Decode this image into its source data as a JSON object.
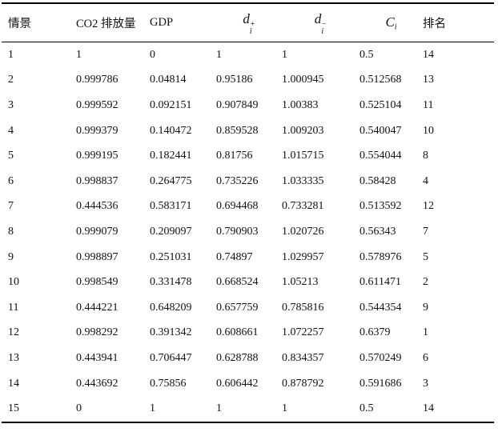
{
  "table": {
    "headers": [
      {
        "text": "情景"
      },
      {
        "text": "CO2 排放量"
      },
      {
        "text": "GDP"
      },
      {
        "base": "d",
        "sup": "+",
        "sub": "i"
      },
      {
        "base": "d",
        "sup": "−",
        "sub": "i"
      },
      {
        "base": "C",
        "sub": "i"
      },
      {
        "text": "排名"
      }
    ],
    "rows": [
      [
        "1",
        "1",
        "0",
        "1",
        "1",
        "0.5",
        "14"
      ],
      [
        "2",
        "0.999786",
        "0.04814",
        "0.95186",
        "1.000945",
        "0.512568",
        "13"
      ],
      [
        "3",
        "0.999592",
        "0.092151",
        "0.907849",
        "1.00383",
        "0.525104",
        "11"
      ],
      [
        "4",
        "0.999379",
        "0.140472",
        "0.859528",
        "1.009203",
        "0.540047",
        "10"
      ],
      [
        "5",
        "0.999195",
        "0.182441",
        "0.81756",
        "1.015715",
        "0.554044",
        "8"
      ],
      [
        "6",
        "0.998837",
        "0.264775",
        "0.735226",
        "1.033335",
        "0.58428",
        "4"
      ],
      [
        "7",
        "0.444536",
        "0.583171",
        "0.694468",
        "0.733281",
        "0.513592",
        "12"
      ],
      [
        "8",
        "0.999079",
        "0.209097",
        "0.790903",
        "1.020726",
        "0.56343",
        "7"
      ],
      [
        "9",
        "0.998897",
        "0.251031",
        "0.74897",
        "1.029957",
        "0.578976",
        "5"
      ],
      [
        "10",
        "0.998549",
        "0.331478",
        "0.668524",
        "1.05213",
        "0.611471",
        "2"
      ],
      [
        "11",
        "0.444221",
        "0.648209",
        "0.657759",
        "0.785816",
        "0.544354",
        "9"
      ],
      [
        "12",
        "0.998292",
        "0.391342",
        "0.608661",
        "1.072257",
        "0.6379",
        "1"
      ],
      [
        "13",
        "0.443941",
        "0.706447",
        "0.628788",
        "0.834357",
        "0.570249",
        "6"
      ],
      [
        "14",
        "0.443692",
        "0.75856",
        "0.606442",
        "0.878792",
        "0.591686",
        "3"
      ],
      [
        "15",
        "0",
        "1",
        "1",
        "1",
        "0.5",
        "14"
      ]
    ]
  },
  "colors": {
    "background": "#ffffff",
    "text": "#111111",
    "rule": "#000000"
  }
}
